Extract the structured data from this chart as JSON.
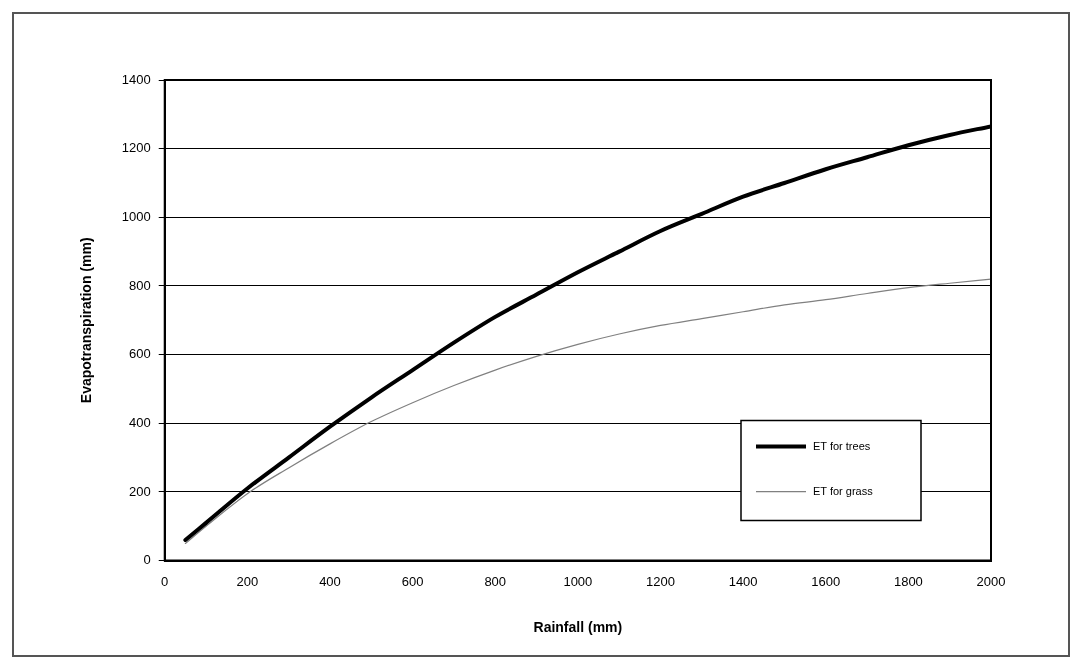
{
  "chart_data": {
    "type": "line",
    "xlabel": "Rainfall (mm)",
    "ylabel": "Evapotranspiration (mm)",
    "x": [
      50,
      100,
      200,
      300,
      400,
      500,
      600,
      700,
      800,
      900,
      1000,
      1100,
      1200,
      1300,
      1400,
      1500,
      1600,
      1700,
      1800,
      1900,
      2000
    ],
    "series": [
      {
        "name": "ET for trees",
        "color": "#000000",
        "values": [
          60,
          110,
          210,
          300,
          390,
          475,
          555,
          635,
          710,
          775,
          840,
          900,
          960,
          1010,
          1060,
          1100,
          1140,
          1175,
          1210,
          1240,
          1265
        ]
      },
      {
        "name": "ET for grass",
        "color": "#808080",
        "values": [
          50,
          100,
          195,
          270,
          340,
          405,
          460,
          510,
          555,
          595,
          630,
          660,
          685,
          705,
          725,
          745,
          760,
          778,
          795,
          808,
          820
        ]
      }
    ],
    "xlim": [
      0,
      2000
    ],
    "xticks": [
      0,
      200,
      400,
      600,
      800,
      1000,
      1200,
      1400,
      1600,
      1800,
      2000
    ],
    "ylim": [
      0,
      1400
    ],
    "yticks": [
      0,
      200,
      400,
      600,
      800,
      1000,
      1200,
      1400
    ],
    "grid": "y",
    "legend": "bottom right",
    "marker": "none",
    "line_style": "solid"
  }
}
